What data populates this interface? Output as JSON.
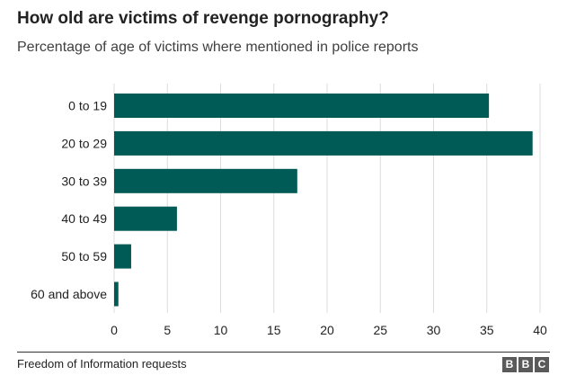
{
  "chart_data": {
    "type": "bar",
    "orientation": "horizontal",
    "title": "How old are victims of revenge pornography?",
    "subtitle": "Percentage of age of victims where mentioned in police reports",
    "categories": [
      "0 to 19",
      "20 to 29",
      "30 to 39",
      "40 to 49",
      "50 to 59",
      "60 and above"
    ],
    "values": [
      35.2,
      39.3,
      17.2,
      5.9,
      1.6,
      0.4
    ],
    "xlim": [
      0,
      40
    ],
    "xticks": [
      0,
      5,
      10,
      15,
      20,
      25,
      30,
      35,
      40
    ],
    "xlabel": "",
    "ylabel": "",
    "grid": "vertical",
    "bar_color": "#005a55"
  },
  "footer": {
    "source": "Freedom of Information requests",
    "logo_letters": [
      "B",
      "B",
      "C"
    ]
  },
  "colors": {
    "grid": "#dcdcdc",
    "text": "#222222",
    "logo_bg": "#5a5a5a"
  }
}
